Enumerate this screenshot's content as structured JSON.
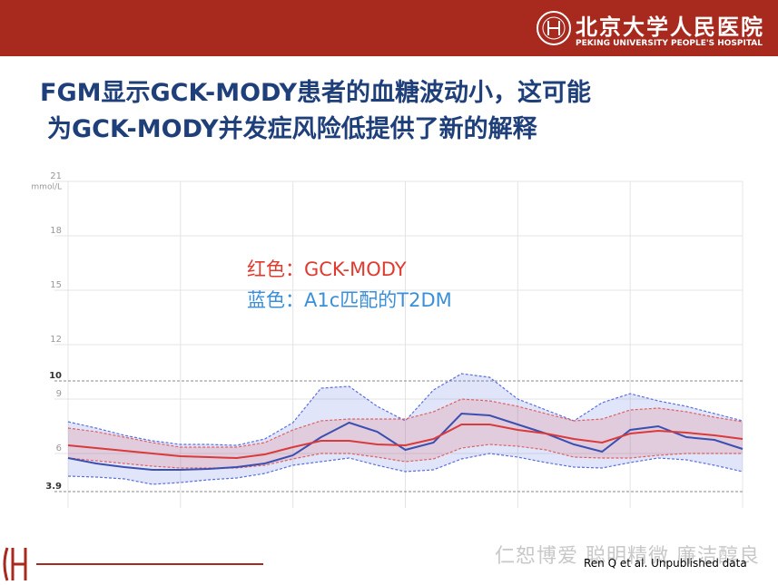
{
  "header": {
    "hospital_cn": "北京大学人民医院",
    "hospital_en": "PEKING UNIVERSITY PEOPLE'S HOSPITAL"
  },
  "title": [
    "FGM显示GCK-MODY患者的血糖波动小，这可能",
    "为GCK-MODY并发症风险低提供了新的解释"
  ],
  "chart_data": {
    "type": "line",
    "y_unit": "mmol/L",
    "x": [
      0,
      1,
      2,
      3,
      4,
      5,
      6,
      7,
      8,
      9,
      10,
      11,
      12,
      13,
      14,
      15,
      16,
      17,
      18,
      19,
      20,
      21,
      22,
      23,
      24
    ],
    "xlim": [
      0,
      24
    ],
    "xticks": [
      0,
      4,
      8,
      12,
      16,
      20,
      24
    ],
    "ylim": [
      3,
      21
    ],
    "yticks": [
      21,
      18,
      15,
      12,
      10,
      9,
      6,
      3.9
    ],
    "target_range": [
      3.9,
      10
    ],
    "grid": true,
    "series": [
      {
        "name": "蓝色：A1c匹配的T2DM",
        "color": "#3b4fb0",
        "band_color": "#5a6ee0",
        "label_color": "#3a8fd8",
        "values": [
          5.75,
          5.45,
          5.25,
          5.1,
          5.1,
          5.15,
          5.25,
          5.45,
          5.9,
          6.9,
          7.7,
          7.2,
          6.2,
          6.6,
          8.2,
          8.1,
          7.6,
          7.1,
          6.5,
          6.1,
          7.3,
          7.5,
          6.9,
          6.75,
          6.25
        ],
        "band_upper": [
          7.75,
          7.4,
          7.0,
          6.7,
          6.5,
          6.5,
          6.45,
          6.8,
          7.7,
          9.6,
          9.7,
          8.6,
          7.8,
          9.5,
          10.4,
          10.2,
          9.0,
          8.4,
          7.8,
          8.8,
          9.3,
          8.9,
          8.6,
          8.2,
          7.8
        ],
        "band_lower": [
          4.75,
          4.7,
          4.6,
          4.3,
          4.4,
          4.55,
          4.65,
          4.9,
          5.35,
          5.55,
          5.75,
          5.35,
          5.0,
          5.1,
          5.7,
          6.0,
          5.8,
          5.5,
          5.25,
          5.2,
          5.5,
          5.75,
          5.65,
          5.35,
          5.0
        ]
      },
      {
        "name": "红色：GCK-MODY",
        "color": "#d93a3a",
        "band_color": "#e06060",
        "label_color": "#e03a2f",
        "values": [
          6.45,
          6.3,
          6.15,
          6.0,
          5.85,
          5.8,
          5.75,
          5.95,
          6.35,
          6.7,
          6.7,
          6.5,
          6.45,
          6.8,
          7.6,
          7.6,
          7.3,
          7.1,
          6.8,
          6.6,
          7.1,
          7.25,
          7.15,
          7.0,
          6.8
        ],
        "band_upper": [
          7.4,
          7.2,
          6.9,
          6.6,
          6.35,
          6.35,
          6.35,
          6.6,
          7.3,
          7.8,
          7.9,
          7.9,
          7.9,
          8.3,
          9.0,
          8.9,
          8.6,
          8.2,
          7.8,
          7.9,
          8.4,
          8.5,
          8.3,
          8.0,
          7.75
        ],
        "band_lower": [
          5.75,
          5.6,
          5.45,
          5.3,
          5.2,
          5.2,
          5.2,
          5.35,
          5.7,
          6.0,
          6.0,
          5.8,
          5.55,
          5.7,
          6.3,
          6.5,
          6.4,
          6.2,
          5.8,
          5.75,
          5.75,
          5.9,
          6.0,
          6.0,
          6.0
        ]
      }
    ]
  },
  "footer": {
    "motto": "仁恕博爱 聪明精微 廉洁醇良",
    "source": "Ren Q et al. Unpublished data"
  }
}
